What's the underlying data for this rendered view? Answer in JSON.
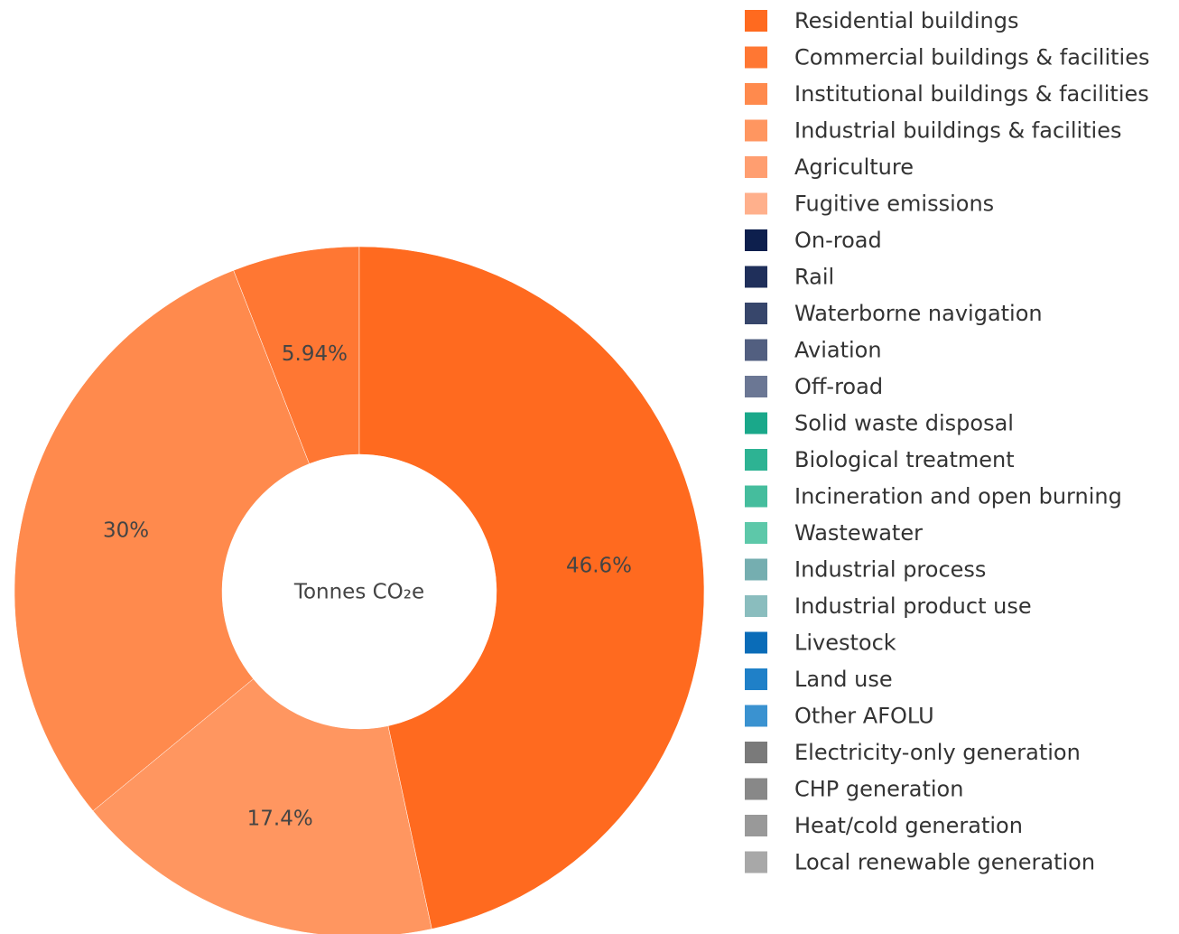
{
  "chart_data": {
    "type": "donut",
    "center_label": "Tonnes CO₂e",
    "categories": [
      "Residential buildings",
      "Commercial buildings & facilities",
      "Institutional buildings & facilities",
      "Industrial buildings & facilities",
      "Agriculture",
      "Fugitive emissions",
      "On-road",
      "Rail",
      "Waterborne navigation",
      "Aviation",
      "Off-road",
      "Solid waste disposal",
      "Biological treatment",
      "Incineration and open burning",
      "Wastewater",
      "Industrial process",
      "Industrial product use",
      "Livestock",
      "Land use",
      "Other AFOLU",
      "Electricity-only generation",
      "CHP generation",
      "Heat/cold generation",
      "Local renewable generation"
    ],
    "values": [
      46.6,
      5.94,
      30,
      17.4,
      0,
      0,
      0,
      0,
      0,
      0,
      0,
      0,
      0,
      0,
      0,
      0,
      0,
      0,
      0,
      0,
      0,
      0,
      0,
      0
    ],
    "value_labels": [
      "46.6%",
      "5.94%",
      "30%",
      "17.4%",
      null,
      null,
      null,
      null,
      null,
      null,
      null,
      null,
      null,
      null,
      null,
      null,
      null,
      null,
      null,
      null,
      null,
      null,
      null,
      null
    ],
    "colors": [
      "#ff6a1f",
      "#ff7733",
      "#ff8a4d",
      "#ff9660",
      "#ff9e70",
      "#ffb08c",
      "#0d1f4d",
      "#1f2f5a",
      "#37466b",
      "#525f80",
      "#6b7794",
      "#1aa88a",
      "#2db393",
      "#45bd9d",
      "#5dc8a9",
      "#75aeb0",
      "#8abdbe",
      "#0a6cb8",
      "#1f80c8",
      "#3a92d0",
      "#7a7a7a",
      "#888888",
      "#999999",
      "#a8a8a8"
    ],
    "legend": "right"
  }
}
